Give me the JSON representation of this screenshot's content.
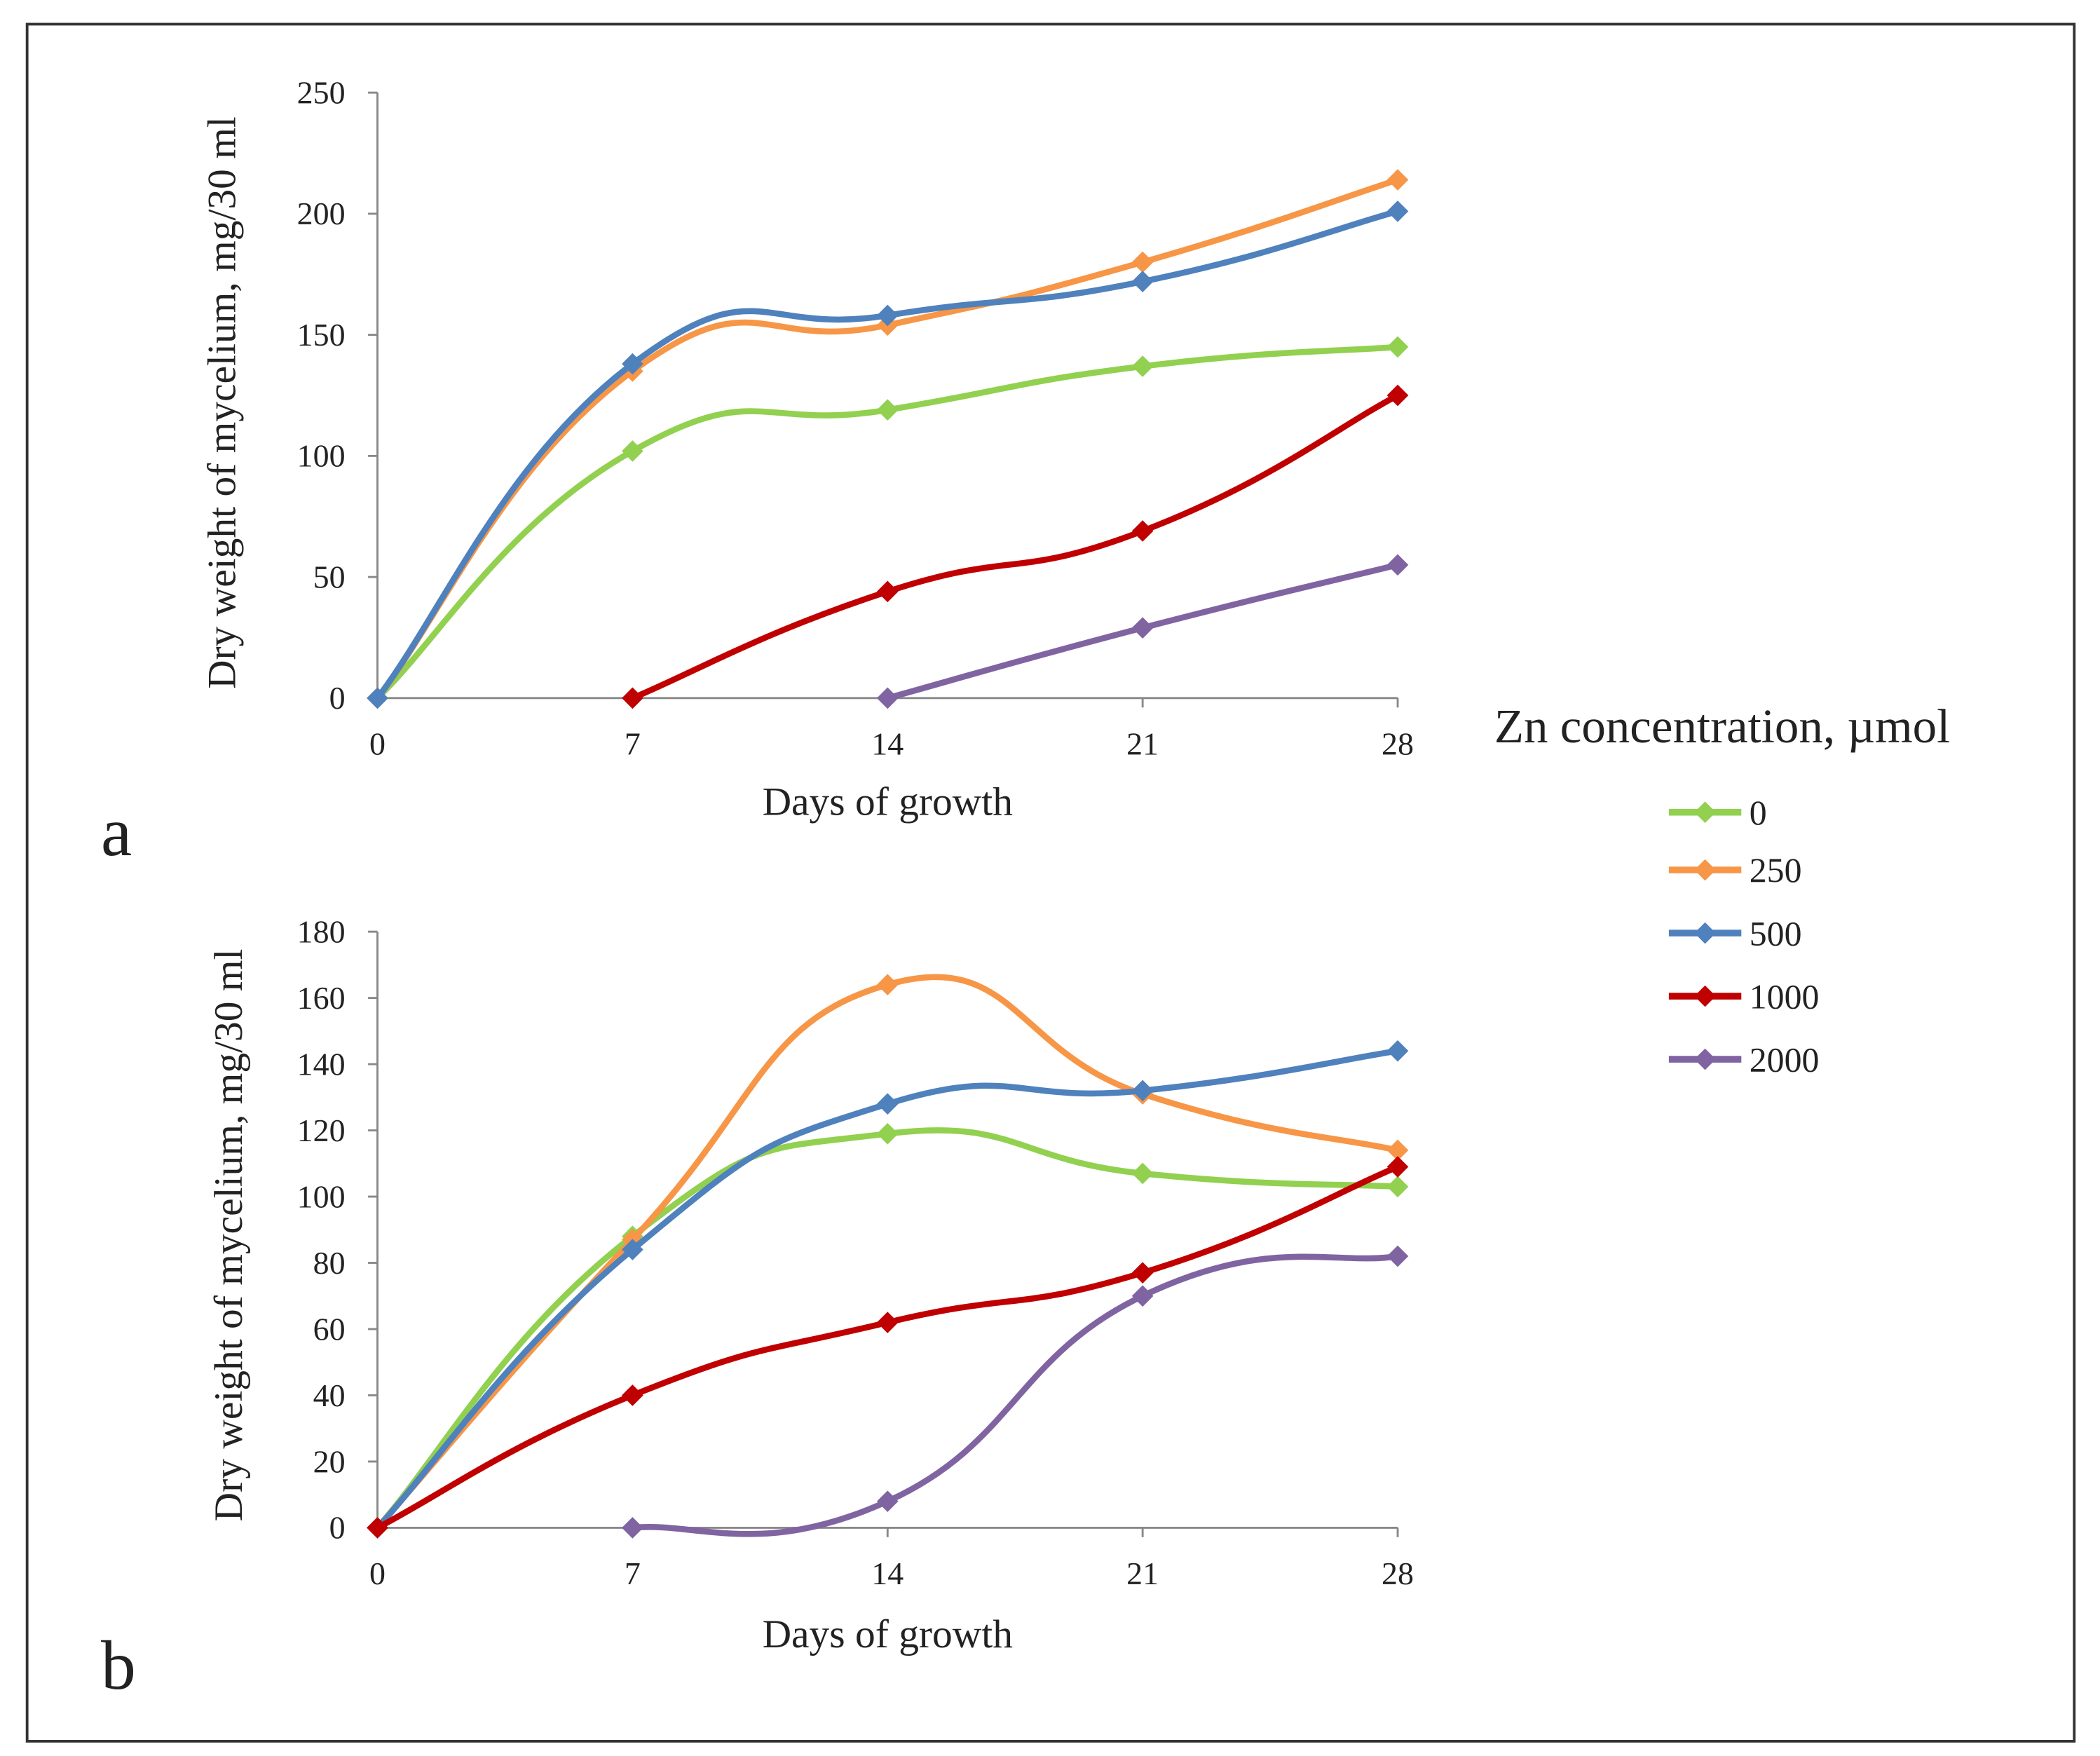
{
  "chart_data": [
    {
      "type": "line",
      "panel_label": "a",
      "xlabel": "Days of growth",
      "ylabel": "Dry weight of mycelium, mg/30 ml",
      "x_ticks": [
        "0",
        "7",
        "14",
        "21",
        "28"
      ],
      "xlim": [
        0,
        28
      ],
      "y_ticks": [
        "0",
        "50",
        "100",
        "150",
        "200",
        "250"
      ],
      "ylim": [
        0,
        250
      ],
      "grid": false,
      "series": [
        {
          "name": "0",
          "x": [
            0,
            7,
            14,
            21,
            28
          ],
          "values": [
            0,
            102,
            119,
            137,
            145
          ]
        },
        {
          "name": "250",
          "x": [
            0,
            7,
            14,
            21,
            28
          ],
          "values": [
            0,
            135,
            154,
            180,
            214
          ]
        },
        {
          "name": "500",
          "x": [
            0,
            7,
            14,
            21,
            28
          ],
          "values": [
            0,
            138,
            158,
            172,
            201
          ]
        },
        {
          "name": "1000",
          "x": [
            7,
            14,
            21,
            28
          ],
          "values": [
            0,
            44,
            69,
            125
          ]
        },
        {
          "name": "2000",
          "x": [
            14,
            21,
            28
          ],
          "values": [
            0,
            29,
            55
          ]
        }
      ]
    },
    {
      "type": "line",
      "panel_label": "b",
      "xlabel": "Days of growth",
      "ylabel": "Dry weight of mycelium, mg/30 ml",
      "x_ticks": [
        "0",
        "7",
        "14",
        "21",
        "28"
      ],
      "xlim": [
        0,
        28
      ],
      "y_ticks": [
        "0",
        "20",
        "40",
        "60",
        "80",
        "100",
        "120",
        "140",
        "160",
        "180"
      ],
      "ylim": [
        0,
        180
      ],
      "grid": false,
      "series": [
        {
          "name": "0",
          "x": [
            0,
            7,
            14,
            21,
            28
          ],
          "values": [
            0,
            88,
            119,
            107,
            103
          ]
        },
        {
          "name": "250",
          "x": [
            0,
            7,
            14,
            21,
            28
          ],
          "values": [
            0,
            87,
            164,
            131,
            114
          ]
        },
        {
          "name": "500",
          "x": [
            0,
            7,
            14,
            21,
            28
          ],
          "values": [
            0,
            84,
            128,
            132,
            144
          ]
        },
        {
          "name": "1000",
          "x": [
            0,
            7,
            14,
            21,
            28
          ],
          "values": [
            0,
            40,
            62,
            77,
            109
          ]
        },
        {
          "name": "2000",
          "x": [
            7,
            14,
            21,
            28
          ],
          "values": [
            0,
            8,
            70,
            82
          ]
        }
      ]
    }
  ],
  "legend": {
    "title": "Zn concentration, µmol",
    "placement": "right",
    "items": [
      {
        "label": "0",
        "color": "#92d050"
      },
      {
        "label": "250",
        "color": "#f79646"
      },
      {
        "label": "500",
        "color": "#4f81bd"
      },
      {
        "label": "1000",
        "color": "#c00000"
      },
      {
        "label": "2000",
        "color": "#8064a2"
      }
    ]
  }
}
